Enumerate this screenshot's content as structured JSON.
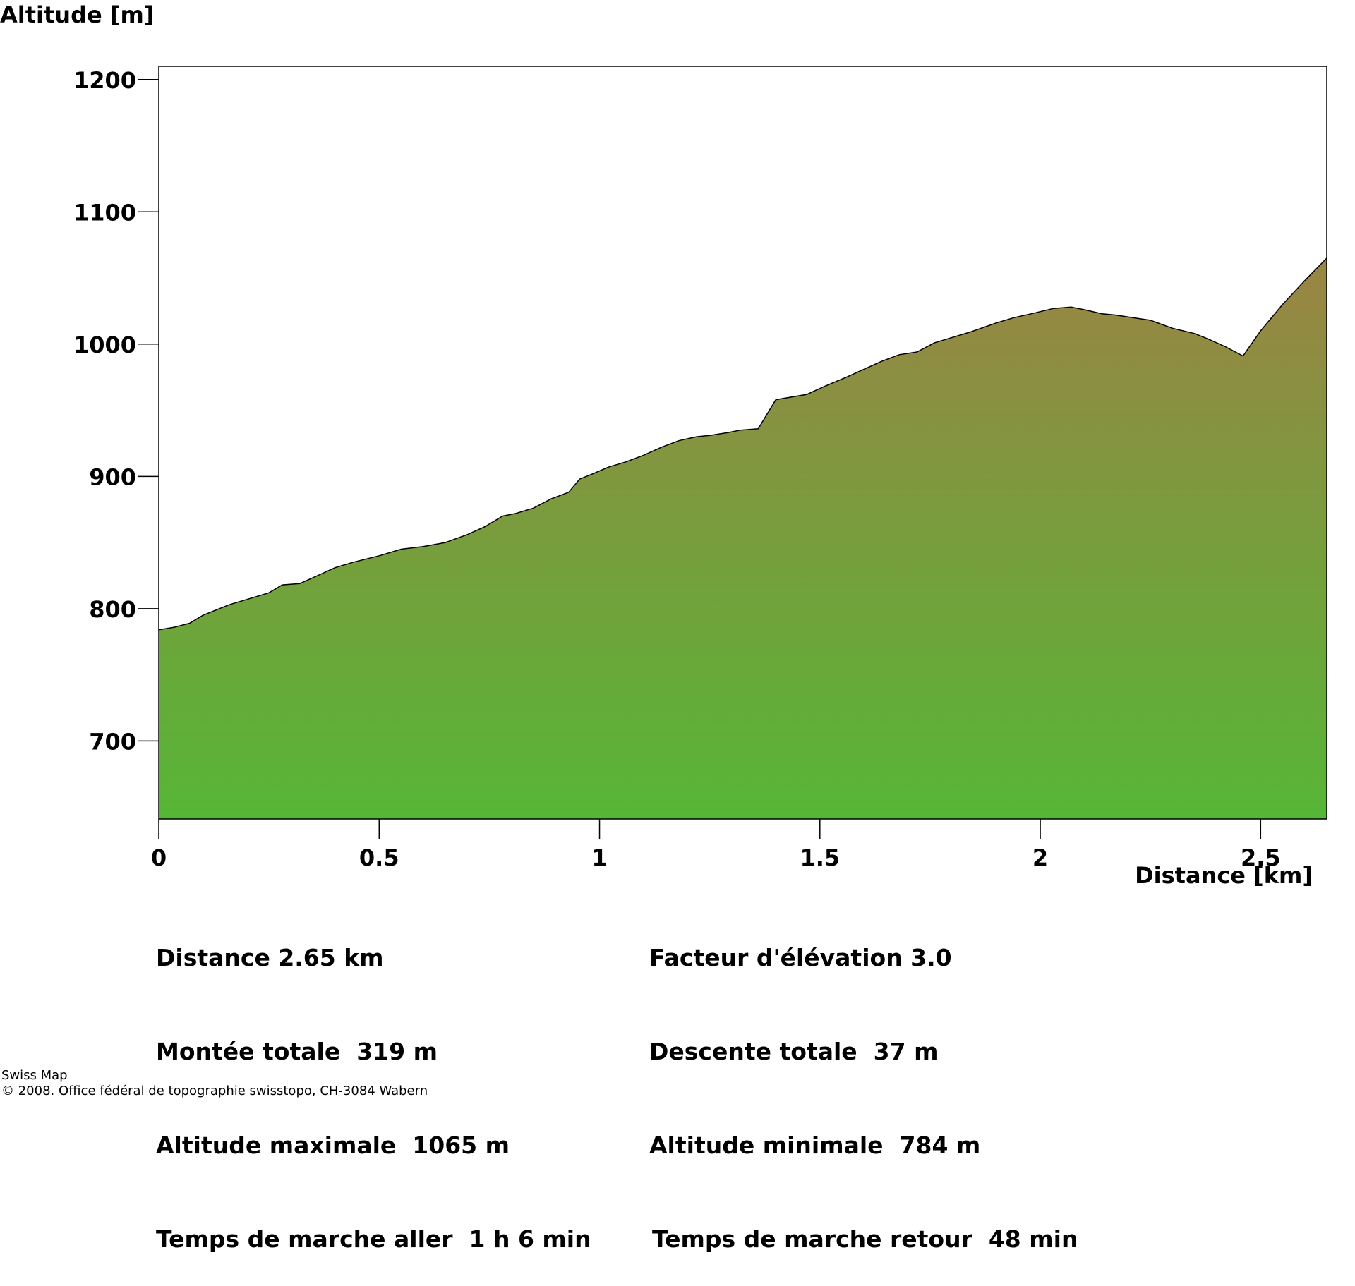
{
  "chart_data": {
    "type": "area",
    "ylabel": "Altitude [m]",
    "xlabel": "Distance [km]",
    "xlim": [
      0,
      2.65
    ],
    "ylim": [
      641,
      1210
    ],
    "x_ticks": [
      0,
      0.5,
      1,
      1.5,
      2,
      2.5
    ],
    "x_tick_labels": [
      "0",
      "0.5",
      "1",
      "1.5",
      "2",
      "2.5"
    ],
    "y_ticks": [
      700,
      800,
      900,
      1000,
      1100,
      1200
    ],
    "y_tick_labels": [
      "700",
      "800",
      "900",
      "1000",
      "1100",
      "1200"
    ],
    "grid": false,
    "fill_gradient": {
      "top": "#9a8444",
      "bottom": "#56b636"
    },
    "line_color": "#000000",
    "series": [
      {
        "x": [
          0,
          0.035,
          0.07,
          0.1,
          0.13,
          0.16,
          0.21,
          0.25,
          0.28,
          0.32,
          0.36,
          0.4,
          0.44,
          0.5,
          0.55,
          0.6,
          0.65,
          0.7,
          0.74,
          0.78,
          0.81,
          0.85,
          0.89,
          0.93,
          0.955,
          0.985,
          1.02,
          1.06,
          1.1,
          1.14,
          1.18,
          1.22,
          1.25,
          1.29,
          1.32,
          1.36,
          1.4,
          1.47,
          1.51,
          1.56,
          1.6,
          1.64,
          1.68,
          1.72,
          1.76,
          1.84,
          1.9,
          1.94,
          1.98,
          2.03,
          2.07,
          2.1,
          2.14,
          2.17,
          2.21,
          2.25,
          2.3,
          2.35,
          2.38,
          2.42,
          2.46,
          2.5,
          2.55,
          2.6,
          2.65
        ],
        "y": [
          784,
          786,
          789,
          795,
          799,
          803,
          808,
          812,
          818,
          819,
          825,
          831,
          835,
          840,
          845,
          847,
          850,
          856,
          862,
          870,
          872,
          876,
          883,
          888,
          898,
          902,
          907,
          911,
          916,
          922,
          927,
          930,
          931,
          933,
          935,
          936,
          958,
          962,
          968,
          975,
          981,
          987,
          992,
          994,
          1001,
          1009,
          1016,
          1020,
          1023,
          1027,
          1028,
          1026,
          1023,
          1022,
          1020,
          1018,
          1012,
          1008,
          1004,
          998,
          991,
          1010,
          1030,
          1048,
          1065
        ]
      }
    ]
  },
  "stats": {
    "distance": "Distance 2.65 km",
    "total_ascent": "Montée totale  319 m",
    "max_altitude": "Altitude maximale  1065 m",
    "walk_time_out": "Temps de marche aller  1 h 6 min",
    "elevation_factor": "Facteur d'élévation 3.0",
    "total_descent": "Descente totale  37 m",
    "min_altitude": "Altitude minimale  784 m",
    "walk_time_back": "Temps de marche retour  48 min"
  },
  "footer": {
    "line1": "Swiss Map",
    "line2": "© 2008. Office fédéral de topographie swisstopo, CH-3084 Wabern"
  }
}
